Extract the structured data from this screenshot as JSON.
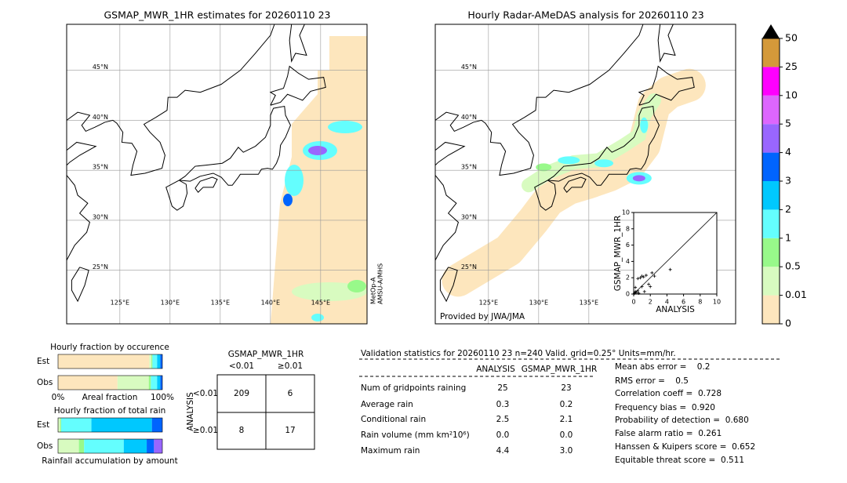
{
  "left_map": {
    "title": "GSMAP_MWR_1HR estimates for 20260110 23",
    "lat_labels": [
      "45°N",
      "40°N",
      "35°N",
      "30°N",
      "25°N"
    ],
    "lon_labels": [
      "125°E",
      "130°E",
      "135°E",
      "140°E",
      "145°E"
    ],
    "satellite_note": [
      "MetOp-A",
      "AMSU-A/MHS"
    ]
  },
  "right_map": {
    "title": "Hourly Radar-AMeDAS analysis for 20260110 23",
    "lat_labels": [
      "45°N",
      "40°N",
      "35°N",
      "30°N",
      "25°N"
    ],
    "lon_labels": [
      "125°E",
      "130°E",
      "135°E"
    ],
    "credit": "Provided by JWA/JMA"
  },
  "colorbar": {
    "levels": [
      0,
      0.01,
      0.5,
      1,
      2,
      3,
      4,
      5,
      10,
      25,
      50
    ],
    "colors": [
      "#fde6bd",
      "#d8fbc0",
      "#98f98a",
      "#64fefe",
      "#00c8fe",
      "#0064fe",
      "#9966fe",
      "#dd66fd",
      "#fe00fe",
      "#d4993a"
    ]
  },
  "chart_data": [
    {
      "type": "scatter",
      "x_label": "ANALYSIS",
      "y_label": "GSMAP_MWR_1HR",
      "xlim": [
        0,
        10
      ],
      "ylim": [
        0,
        10
      ],
      "xticks": [
        0,
        2,
        4,
        6,
        8,
        10
      ],
      "yticks": [
        0,
        2,
        4,
        6,
        8,
        10
      ],
      "x": [
        0.1,
        0.2,
        0.3,
        0.5,
        0.5,
        0.8,
        1.0,
        1.0,
        1.2,
        1.5,
        1.8,
        2.0,
        2.2,
        2.5,
        4.4,
        0.2,
        0.6,
        1.3
      ],
      "y": [
        0.1,
        0.3,
        0.2,
        1.9,
        0.4,
        2.0,
        2.2,
        0.9,
        2.1,
        2.3,
        1.2,
        0.9,
        2.6,
        2.2,
        3.0,
        0.8,
        0.1,
        0.3
      ]
    },
    {
      "type": "stacked-bar",
      "title": "Hourly fraction by occurence",
      "x_label": "Areal fraction",
      "categories": [
        "Est",
        "Obs"
      ],
      "xlim": [
        0,
        100
      ],
      "xticks": [
        {
          "value": 0,
          "label": "0%"
        },
        {
          "value": 100,
          "label": "100%"
        }
      ],
      "series": [
        {
          "color": "#fde6bd",
          "values": [
            87.5,
            57
          ]
        },
        {
          "color": "#d8fbc0",
          "values": [
            2,
            30
          ]
        },
        {
          "color": "#98f98a",
          "values": [
            1,
            2
          ]
        },
        {
          "color": "#64fefe",
          "values": [
            4.5,
            6
          ]
        },
        {
          "color": "#00c8fe",
          "values": [
            3,
            3
          ]
        },
        {
          "color": "#0064fe",
          "values": [
            2,
            2
          ]
        }
      ]
    },
    {
      "type": "stacked-bar",
      "title": "Hourly fraction of total rain",
      "x_label": "Rainfall accumulation by amount",
      "categories": [
        "Est",
        "Obs"
      ],
      "xlim": [
        0,
        100
      ],
      "series": [
        {
          "color": "#fde6bd",
          "values": [
            0,
            0
          ]
        },
        {
          "color": "#d8fbc0",
          "values": [
            2,
            20
          ]
        },
        {
          "color": "#98f98a",
          "values": [
            1,
            5
          ]
        },
        {
          "color": "#64fefe",
          "values": [
            29,
            38
          ]
        },
        {
          "color": "#00c8fe",
          "values": [
            58,
            22
          ]
        },
        {
          "color": "#0064fe",
          "values": [
            10,
            7
          ]
        },
        {
          "color": "#9966fe",
          "values": [
            0,
            8
          ]
        }
      ]
    }
  ],
  "contingency": {
    "title": "GSMAP_MWR_1HR",
    "columns": [
      "<0.01",
      "≥0.01"
    ],
    "row_axis": "ANALYSIS",
    "rows": [
      "<0.01",
      "≥0.01"
    ],
    "cells": [
      [
        "209",
        "6"
      ],
      [
        "8",
        "17"
      ]
    ]
  },
  "validation": {
    "header": "Validation statistics for 20260110 23  n=240 Valid. grid=0.25° Units=mm/hr.",
    "columns": [
      "ANALYSIS",
      "GSMAP_MWR_1HR"
    ],
    "rows": [
      {
        "label": "Num of gridpoints raining",
        "values": [
          "25",
          "23"
        ]
      },
      {
        "label": "Average rain",
        "values": [
          "0.3",
          "0.2"
        ]
      },
      {
        "label": "Conditional rain",
        "values": [
          "2.5",
          "2.1"
        ]
      },
      {
        "label": "Rain volume (mm km²10⁶)",
        "values": [
          "0.0",
          "0.0"
        ]
      },
      {
        "label": "Maximum rain",
        "values": [
          "4.4",
          "3.0"
        ]
      }
    ],
    "scores": [
      "Mean abs error =    0.2",
      "RMS error =    0.5",
      "Correlation coeff =  0.728",
      "Frequency bias =  0.920",
      "Probability of detection =  0.680",
      "False alarm ratio =  0.261",
      "Hanssen & Kuipers score =  0.652",
      "Equitable threat score =  0.511"
    ]
  }
}
